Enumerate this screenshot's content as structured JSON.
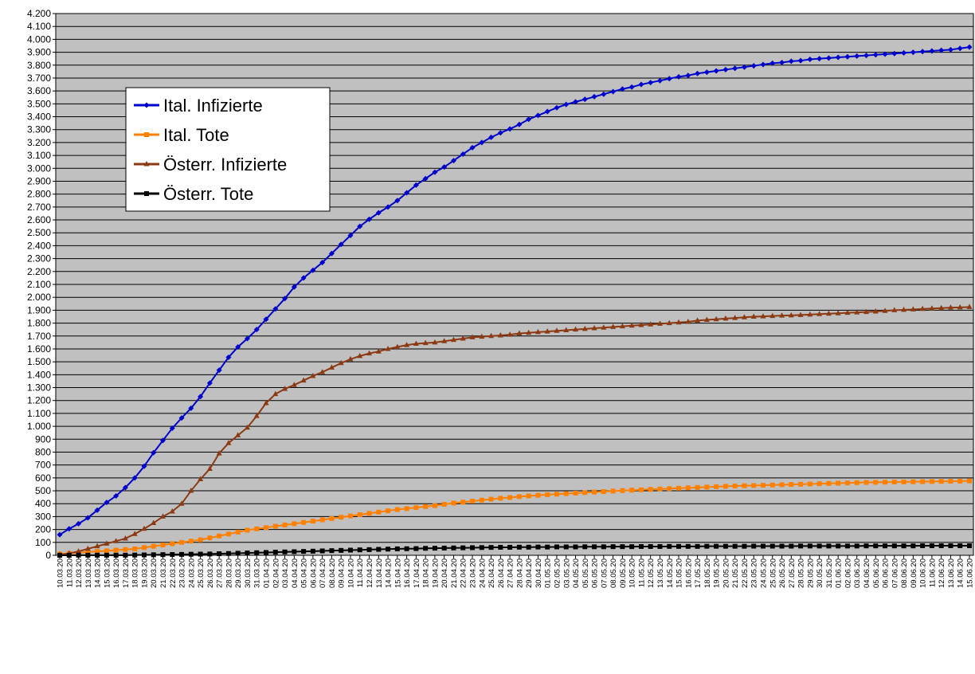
{
  "chart_data": {
    "type": "line",
    "title": "",
    "xlabel": "",
    "ylabel": "",
    "ylim": [
      0,
      4200
    ],
    "ytick_step": 100,
    "grid": true,
    "legend_position": "upper-left inside plot",
    "plot_background": "#c0c0c0",
    "x": [
      "10.03.20",
      "11.03.20",
      "12.03.20",
      "13.03.20",
      "14.03.20",
      "15.03.20",
      "16.03.20",
      "17.03.20",
      "18.03.20",
      "19.03.20",
      "20.03.20",
      "21.03.20",
      "22.03.20",
      "23.03.20",
      "24.03.20",
      "25.03.20",
      "26.03.20",
      "27.03.20",
      "28.03.20",
      "29.03.20",
      "30.03.20",
      "31.03.20",
      "01.04.20",
      "02.04.20",
      "03.04.20",
      "04.04.20",
      "05.04.20",
      "06.04.20",
      "07.04.20",
      "08.04.20",
      "09.04.20",
      "10.04.20",
      "11.04.20",
      "12.04.20",
      "13.04.20",
      "14.04.20",
      "15.04.20",
      "16.04.20",
      "17.04.20",
      "18.04.20",
      "19.04.20",
      "20.04.20",
      "21.04.20",
      "22.04.20",
      "23.04.20",
      "24.04.20",
      "25.04.20",
      "26.04.20",
      "27.04.20",
      "28.04.20",
      "29.04.20",
      "30.04.20",
      "01.05.20",
      "02.05.20",
      "03.05.20",
      "04.05.20",
      "05.05.20",
      "06.05.20",
      "07.05.20",
      "08.05.20",
      "09.05.20",
      "10.05.20",
      "11.05.20",
      "12.05.20",
      "13.05.20",
      "14.05.20",
      "15.05.20",
      "16.05.20",
      "17.05.20",
      "18.05.20",
      "19.05.20",
      "20.05.20",
      "21.05.20",
      "22.05.20",
      "23.05.20",
      "24.05.20",
      "25.05.20",
      "26.05.20",
      "27.05.20",
      "28.05.20",
      "29.05.20",
      "30.05.20",
      "31.05.20",
      "01.06.20",
      "02.06.20",
      "03.06.20",
      "04.06.20",
      "05.06.20",
      "06.06.20",
      "07.06.20",
      "08.06.20",
      "09.06.20",
      "10.06.20",
      "11.06.20",
      "12.06.20",
      "13.06.20",
      "14.06.20",
      "15.06.20"
    ],
    "series": [
      {
        "name": "Ital. Infizierte",
        "color": "#0000cc",
        "marker": "diamond",
        "values": [
          160,
          205,
          245,
          290,
          350,
          410,
          460,
          525,
          600,
          690,
          795,
          890,
          985,
          1065,
          1140,
          1230,
          1335,
          1435,
          1535,
          1615,
          1680,
          1750,
          1830,
          1910,
          1990,
          2080,
          2150,
          2210,
          2270,
          2340,
          2410,
          2480,
          2550,
          2605,
          2655,
          2700,
          2750,
          2810,
          2870,
          2920,
          2970,
          3010,
          3060,
          3110,
          3160,
          3200,
          3240,
          3275,
          3305,
          3340,
          3380,
          3410,
          3440,
          3470,
          3495,
          3515,
          3535,
          3555,
          3575,
          3595,
          3615,
          3630,
          3650,
          3665,
          3680,
          3695,
          3710,
          3720,
          3735,
          3745,
          3755,
          3765,
          3775,
          3785,
          3795,
          3805,
          3815,
          3820,
          3830,
          3835,
          3845,
          3850,
          3855,
          3860,
          3865,
          3870,
          3875,
          3880,
          3885,
          3890,
          3895,
          3900,
          3905,
          3910,
          3915,
          3920,
          3930,
          3940
        ]
      },
      {
        "name": "Ital. Tote",
        "color": "#ff8000",
        "marker": "square",
        "values": [
          10,
          15,
          20,
          25,
          30,
          35,
          40,
          45,
          50,
          60,
          70,
          80,
          90,
          100,
          110,
          120,
          135,
          150,
          165,
          180,
          195,
          205,
          215,
          225,
          235,
          245,
          255,
          265,
          275,
          285,
          295,
          305,
          315,
          325,
          335,
          345,
          355,
          362,
          370,
          378,
          385,
          395,
          405,
          412,
          420,
          428,
          435,
          442,
          448,
          455,
          460,
          465,
          470,
          474,
          478,
          482,
          486,
          490,
          494,
          498,
          502,
          505,
          508,
          511,
          514,
          517,
          520,
          523,
          526,
          529,
          532,
          535,
          537,
          539,
          541,
          543,
          545,
          547,
          549,
          551,
          553,
          555,
          557,
          559,
          561,
          563,
          565,
          566,
          567,
          568,
          569,
          570,
          571,
          572,
          573,
          574,
          575,
          577
        ]
      },
      {
        "name": "Österr. Infizierte",
        "color": "#8b3a14",
        "marker": "triangle",
        "values": [
          5,
          15,
          30,
          50,
          70,
          90,
          110,
          130,
          165,
          205,
          250,
          300,
          340,
          400,
          500,
          590,
          670,
          790,
          870,
          930,
          990,
          1080,
          1180,
          1250,
          1290,
          1320,
          1355,
          1390,
          1420,
          1455,
          1490,
          1520,
          1545,
          1565,
          1580,
          1600,
          1615,
          1630,
          1640,
          1645,
          1650,
          1660,
          1670,
          1680,
          1690,
          1695,
          1700,
          1705,
          1710,
          1720,
          1725,
          1730,
          1735,
          1740,
          1745,
          1750,
          1755,
          1760,
          1765,
          1770,
          1775,
          1780,
          1785,
          1790,
          1795,
          1800,
          1805,
          1810,
          1820,
          1825,
          1830,
          1835,
          1840,
          1845,
          1850,
          1852,
          1855,
          1858,
          1860,
          1863,
          1866,
          1870,
          1873,
          1876,
          1880,
          1883,
          1886,
          1890,
          1895,
          1900,
          1903,
          1906,
          1910,
          1913,
          1916,
          1920,
          1922,
          1925
        ]
      },
      {
        "name": "Österr. Tote",
        "color": "#000000",
        "marker": "square",
        "values": [
          0,
          0,
          1,
          1,
          1,
          1,
          1,
          1,
          2,
          3,
          4,
          5,
          6,
          7,
          8,
          9,
          10,
          12,
          14,
          16,
          18,
          20,
          22,
          24,
          26,
          28,
          30,
          32,
          34,
          36,
          38,
          40,
          42,
          44,
          46,
          48,
          50,
          51,
          52,
          54,
          55,
          56,
          57,
          58,
          59,
          60,
          61,
          62,
          62,
          63,
          63,
          64,
          64,
          65,
          65,
          65,
          66,
          66,
          66,
          67,
          67,
          67,
          68,
          68,
          68,
          69,
          69,
          69,
          69,
          70,
          70,
          70,
          70,
          70,
          71,
          71,
          71,
          71,
          71,
          72,
          72,
          72,
          72,
          72,
          72,
          72,
          73,
          73,
          73,
          73,
          73,
          73,
          74,
          74,
          74,
          74,
          74,
          74
        ]
      }
    ]
  }
}
